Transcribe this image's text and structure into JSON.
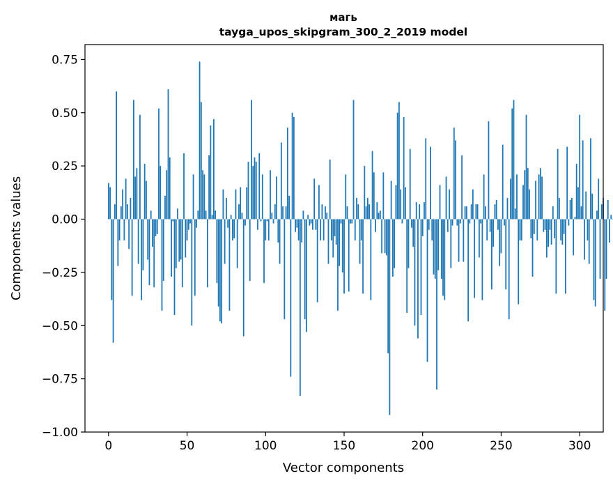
{
  "chart_data": {
    "type": "bar",
    "title": "магь",
    "subtitle": "tayga_upos_skipgram_300_2_2019 model",
    "xlabel": "Vector components",
    "ylabel": "Components values",
    "xlim": [
      -15,
      315
    ],
    "ylim": [
      -1.0,
      0.82
    ],
    "xticks": [
      0,
      50,
      100,
      150,
      200,
      250,
      300
    ],
    "yticks": [
      -1.0,
      -0.75,
      -0.5,
      -0.25,
      0.0,
      0.25,
      0.5,
      0.75
    ],
    "xtick_labels": [
      "0",
      "50",
      "100",
      "150",
      "200",
      "250",
      "300"
    ],
    "ytick_labels": [
      "−1.00",
      "−0.75",
      "−0.50",
      "−0.25",
      "0.00",
      "0.25",
      "0.50",
      "0.75"
    ],
    "grid": false,
    "bar_color": "#1f77b4",
    "values": [
      0.17,
      0.15,
      -0.38,
      -0.58,
      0.07,
      0.6,
      -0.22,
      -0.1,
      0.06,
      0.14,
      -0.1,
      0.19,
      0.07,
      -0.14,
      0.1,
      -0.36,
      0.56,
      0.2,
      0.24,
      -0.21,
      0.49,
      -0.38,
      -0.24,
      0.26,
      0.18,
      -0.19,
      -0.31,
      0.04,
      -0.13,
      -0.32,
      -0.08,
      -0.07,
      0.52,
      0.25,
      -0.43,
      -0.29,
      0.11,
      0.23,
      0.61,
      0.29,
      -0.27,
      -0.01,
      -0.45,
      -0.23,
      0.05,
      -0.2,
      -0.19,
      -0.32,
      0.31,
      -0.18,
      -0.1,
      -0.05,
      -0.02,
      -0.5,
      0.21,
      -0.36,
      -0.04,
      0.04,
      0.74,
      0.55,
      0.23,
      0.21,
      0.04,
      -0.32,
      0.3,
      0.44,
      0.02,
      0.47,
      0.04,
      -0.3,
      -0.41,
      -0.48,
      -0.49,
      0.14,
      -0.21,
      0.1,
      -0.04,
      -0.43,
      0.02,
      -0.1,
      -0.09,
      0.14,
      -0.23,
      0.07,
      0.15,
      0.03,
      -0.55,
      -0.03,
      0.15,
      0.27,
      -0.29,
      0.56,
      0.25,
      0.29,
      0.27,
      -0.05,
      0.31,
      -0.01,
      0.21,
      -0.3,
      -0.1,
      -0.01,
      -0.1,
      0.23,
      0.03,
      -0.02,
      0.07,
      0.2,
      -0.11,
      -0.21,
      0.36,
      0.06,
      -0.47,
      0.06,
      0.43,
      0.11,
      -0.74,
      0.5,
      0.48,
      -0.06,
      -0.04,
      -0.1,
      -0.83,
      -0.11,
      0.04,
      -0.47,
      -0.53,
      0.02,
      -0.03,
      -0.02,
      -0.05,
      0.19,
      -0.05,
      -0.39,
      0.16,
      -0.1,
      0.07,
      -0.1,
      0.06,
      0.03,
      -0.21,
      0.28,
      -0.1,
      -0.18,
      -0.08,
      -0.12,
      -0.43,
      -0.22,
      -0.02,
      -0.25,
      -0.35,
      0.21,
      0.06,
      -0.34,
      -0.02,
      -0.02,
      0.56,
      -0.1,
      0.1,
      0.07,
      -0.21,
      -0.1,
      -0.35,
      0.25,
      0.06,
      0.1,
      0.07,
      -0.38,
      0.32,
      0.22,
      -0.06,
      0.08,
      0.03,
      0.04,
      -0.16,
      0.22,
      -0.16,
      -0.17,
      -0.63,
      -0.92,
      0.18,
      -0.27,
      -0.23,
      0.16,
      0.5,
      0.55,
      0.14,
      -0.02,
      0.48,
      0.15,
      -0.44,
      -0.23,
      0.33,
      -0.04,
      -0.13,
      -0.5,
      0.08,
      -0.56,
      0.07,
      -0.45,
      -0.08,
      0.08,
      0.38,
      -0.67,
      -0.05,
      0.34,
      -0.1,
      -0.26,
      -0.28,
      -0.8,
      -0.24,
      0.16,
      -0.28,
      -0.36,
      -0.38,
      0.2,
      -0.06,
      0.14,
      -0.23,
      -0.03,
      0.43,
      0.37,
      -0.03,
      -0.2,
      -0.02,
      0.3,
      -0.2,
      0.06,
      0.06,
      -0.48,
      -0.02,
      0.07,
      0.14,
      -0.37,
      0.07,
      0.07,
      -0.18,
      -0.02,
      -0.38,
      0.21,
      0.06,
      -0.1,
      0.46,
      -0.06,
      -0.33,
      -0.13,
      0.07,
      0.09,
      -0.05,
      -0.22,
      -0.16,
      0.35,
      -0.03,
      -0.33,
      0.1,
      -0.47,
      0.19,
      0.52,
      0.56,
      0.05,
      0.21,
      -0.4,
      -0.1,
      -0.1,
      0.16,
      0.23,
      0.49,
      0.24,
      0.14,
      -0.09,
      -0.27,
      -0.07,
      0.18,
      -0.1,
      0.21,
      0.24,
      0.2,
      -0.06,
      -0.05,
      -0.18,
      -0.13,
      -0.05,
      -0.12,
      0.06,
      -0.09,
      -0.35,
      0.33,
      0.1,
      -0.1,
      -0.12,
      -0.07,
      -0.35,
      0.34,
      -0.03,
      0.09,
      0.1,
      -0.17,
      0.01,
      0.26,
      0.15,
      0.49,
      0.06,
      0.37,
      -0.19,
      0.13,
      -0.1,
      -0.21,
      0.38,
      0.12,
      -0.38,
      -0.41,
      0.04,
      0.19,
      -0.28,
      0.07,
      0.1,
      -0.43,
      -0.28,
      0.09,
      -0.11,
      0.02,
      0.0
    ]
  }
}
